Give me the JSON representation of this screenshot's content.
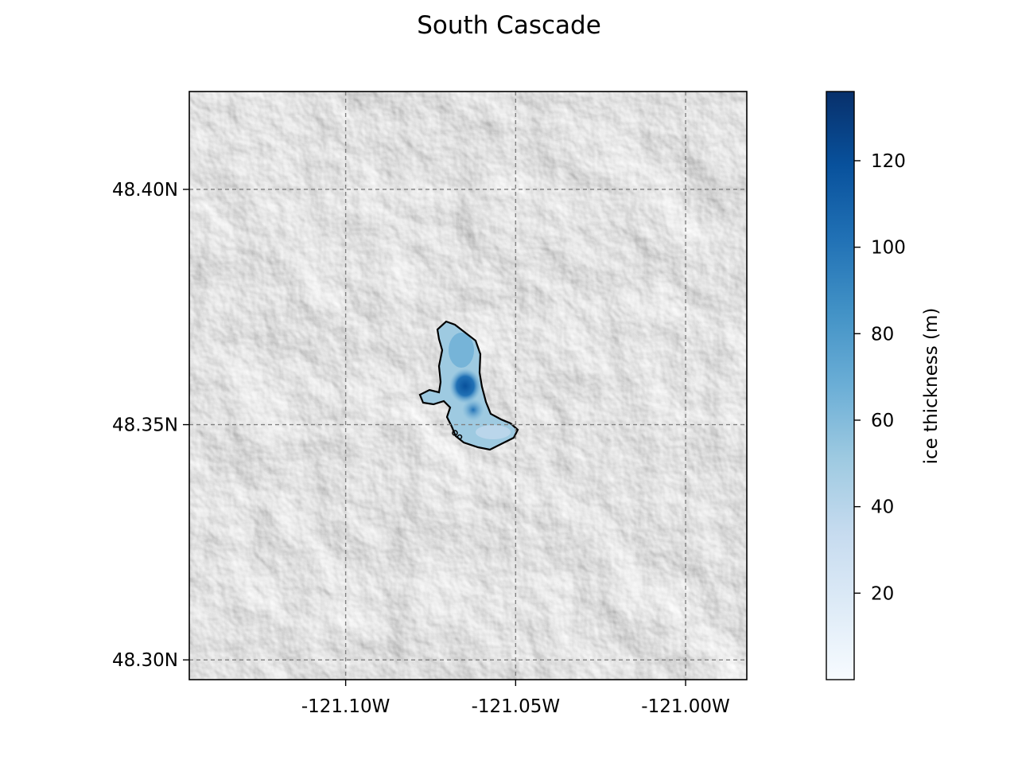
{
  "title": "South Cascade",
  "map": {
    "lon_range": [
      -121.146,
      -120.982
    ],
    "lat_range": [
      48.2958,
      48.4208
    ],
    "x_ticks": [
      {
        "value": -121.1,
        "label": "-121.10W"
      },
      {
        "value": -121.05,
        "label": "-121.05W"
      },
      {
        "value": -121.0,
        "label": "-121.00W"
      }
    ],
    "y_ticks": [
      {
        "value": 48.4,
        "label": "48.40N"
      },
      {
        "value": 48.35,
        "label": "48.35N"
      },
      {
        "value": 48.3,
        "label": "48.30N"
      }
    ],
    "gridlines": true,
    "basemap": "grayscale hillshade",
    "glacier_outline_color": "#000000"
  },
  "colorbar": {
    "label": "ice thickness (m)",
    "cmap": "Blues",
    "range": [
      0,
      136
    ],
    "ticks": [
      20,
      40,
      60,
      80,
      100,
      120
    ],
    "colors": [
      "#f7fbff",
      "#deebf7",
      "#c6dbef",
      "#9ecae1",
      "#6baed6",
      "#4292c6",
      "#2171b5",
      "#08519c",
      "#08306b"
    ]
  }
}
